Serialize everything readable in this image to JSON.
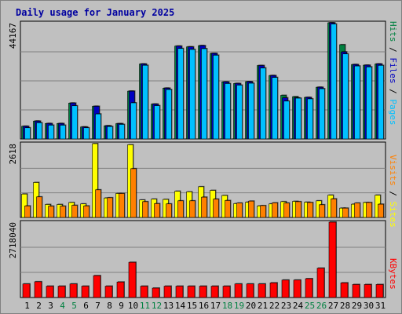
{
  "title": "Daily usage for January 2025",
  "colors": {
    "hits": "#008040",
    "files": "#0000c0",
    "pages": "#00c0ff",
    "visits": "#ff8000",
    "sites": "#ffff00",
    "kbytes": "#ff0000",
    "weekday_label": "#000000",
    "weekend_label": "#008040",
    "plot_bg": "#c0c0c0",
    "grid": "#808080"
  },
  "chart_data": [
    {
      "type": "bar",
      "panel": "hits-files-pages",
      "ymax_label": "44167",
      "ylim": [
        0,
        44167
      ],
      "legend": {
        "pages": "Pages",
        "files": "Files",
        "hits": "Hits",
        "sep1": " / ",
        "sep2": " / "
      },
      "categories": [
        "1",
        "2",
        "3",
        "4",
        "5",
        "6",
        "7",
        "8",
        "9",
        "10",
        "11",
        "12",
        "13",
        "14",
        "15",
        "16",
        "17",
        "18",
        "19",
        "20",
        "21",
        "22",
        "23",
        "24",
        "25",
        "26",
        "27",
        "28",
        "29",
        "30",
        "31"
      ],
      "weekend": [
        false,
        false,
        false,
        true,
        true,
        false,
        false,
        false,
        false,
        false,
        true,
        true,
        false,
        false,
        false,
        false,
        false,
        true,
        true,
        false,
        false,
        false,
        false,
        false,
        true,
        true,
        false,
        false,
        false,
        false,
        false
      ],
      "series": [
        {
          "name": "Hits",
          "values": [
            4820,
            6790,
            5870,
            5870,
            13640,
            4560,
            12410,
            5000,
            5820,
            18170,
            28510,
            13250,
            19310,
            35290,
            35010,
            35480,
            32530,
            21690,
            21090,
            21780,
            27910,
            24110,
            16580,
            16080,
            15800,
            19650,
            44167,
            35830,
            28300,
            28040,
            28510
          ]
        },
        {
          "name": "Files",
          "values": [
            4820,
            6790,
            5870,
            5870,
            13640,
            4560,
            12410,
            5000,
            5820,
            18170,
            28510,
            13250,
            19310,
            35290,
            35010,
            35480,
            32530,
            21690,
            21090,
            21780,
            27910,
            24110,
            15640,
            15640,
            15800,
            19650,
            44167,
            33090,
            28300,
            28040,
            28510
          ]
        },
        {
          "name": "Pages",
          "values": [
            4250,
            6150,
            5230,
            5230,
            12610,
            4250,
            9500,
            4720,
            5530,
            13730,
            27990,
            12650,
            18790,
            34390,
            34030,
            34320,
            31820,
            21050,
            20460,
            21180,
            26980,
            23380,
            14390,
            15500,
            15240,
            19090,
            43690,
            32320,
            27730,
            27390,
            27960
          ]
        }
      ]
    },
    {
      "type": "bar",
      "panel": "visits-sites",
      "ymax_label": "2618",
      "ylim": [
        0,
        2618
      ],
      "legend": {
        "sites": "Sites",
        "visits": "Visits",
        "sep": " / "
      },
      "categories": [
        "1",
        "2",
        "3",
        "4",
        "5",
        "6",
        "7",
        "8",
        "9",
        "10",
        "11",
        "12",
        "13",
        "14",
        "15",
        "16",
        "17",
        "18",
        "19",
        "20",
        "21",
        "22",
        "23",
        "24",
        "25",
        "26",
        "27",
        "28",
        "29",
        "30",
        "31"
      ],
      "series": [
        {
          "name": "Sites",
          "values": [
            830,
            1240,
            460,
            460,
            530,
            480,
            2618,
            690,
            850,
            2580,
            620,
            650,
            640,
            930,
            910,
            1090,
            960,
            780,
            490,
            540,
            410,
            480,
            560,
            570,
            540,
            590,
            790,
            330,
            470,
            530,
            790
          ]
        },
        {
          "name": "Visits",
          "values": [
            410,
            730,
            400,
            400,
            430,
            410,
            980,
            700,
            850,
            1730,
            560,
            490,
            480,
            590,
            590,
            720,
            650,
            600,
            510,
            580,
            420,
            520,
            510,
            560,
            530,
            450,
            660,
            330,
            510,
            530,
            470
          ]
        }
      ]
    },
    {
      "type": "bar",
      "panel": "kbytes",
      "ymax_label": "2718040",
      "ylim": [
        0,
        2718040
      ],
      "legend": {
        "kbytes": "KBytes"
      },
      "categories": [
        "1",
        "2",
        "3",
        "4",
        "5",
        "6",
        "7",
        "8",
        "9",
        "10",
        "11",
        "12",
        "13",
        "14",
        "15",
        "16",
        "17",
        "18",
        "19",
        "20",
        "21",
        "22",
        "23",
        "24",
        "25",
        "26",
        "27",
        "28",
        "29",
        "30",
        "31"
      ],
      "series": [
        {
          "name": "KBytes",
          "values": [
            490000,
            570000,
            410000,
            410000,
            490000,
            410000,
            790000,
            410000,
            560000,
            1270000,
            410000,
            340000,
            410000,
            410000,
            410000,
            410000,
            410000,
            410000,
            490000,
            490000,
            490000,
            530000,
            630000,
            630000,
            680000,
            1060000,
            2718040,
            530000,
            470000,
            470000,
            470000
          ]
        }
      ]
    }
  ]
}
